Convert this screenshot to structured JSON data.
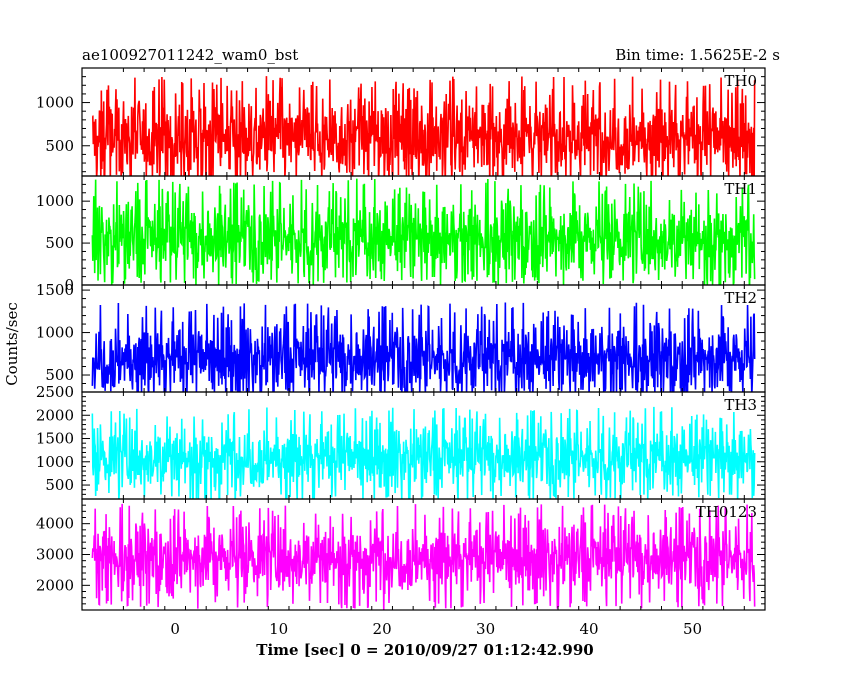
{
  "header": {
    "left_title": "ae100927011242_wam0_bst",
    "right_title": "Bin time: 1.5625E-2 s"
  },
  "axes": {
    "ylabel": "Counts/sec",
    "xlabel": "Time [sec] 0 = 2010/09/27 01:12:42.990"
  },
  "chart_data": {
    "type": "line",
    "title": "ae100927011242_wam0_bst",
    "subtitle": "Bin time: 1.5625E-2 s",
    "xlabel": "Time [sec] 0 = 2010/09/27 01:12:42.990",
    "ylabel": "Counts/sec",
    "xlim": [
      -9,
      57
    ],
    "x_data_range": [
      -8,
      56
    ],
    "xticks": [
      0,
      10,
      20,
      30,
      40,
      50
    ],
    "grid": false,
    "panels": [
      {
        "name": "TH0",
        "color": "#ff0000",
        "ylim": [
          150,
          1400
        ],
        "yticks": [
          500,
          1000
        ],
        "baseline": 600,
        "typical_max": 1200,
        "typical_min": 150
      },
      {
        "name": "TH1",
        "color": "#00ff00",
        "ylim": [
          0,
          1300
        ],
        "yticks": [
          0,
          500,
          1000
        ],
        "baseline": 560,
        "typical_max": 1150,
        "typical_min": 100
      },
      {
        "name": "TH2",
        "color": "#0000ff",
        "ylim": [
          300,
          1560
        ],
        "yticks": [
          500,
          1000,
          1500
        ],
        "baseline": 700,
        "typical_max": 1300,
        "typical_min": 330
      },
      {
        "name": "TH3",
        "color": "#00ffff",
        "ylim": [
          200,
          2500
        ],
        "yticks": [
          500,
          1000,
          1500,
          2000,
          2500
        ],
        "baseline": 1100,
        "typical_max": 1900,
        "typical_min": 300
      },
      {
        "name": "TH0123",
        "color": "#ff00ff",
        "ylim": [
          1200,
          4800
        ],
        "yticks": [
          2000,
          3000,
          4000
        ],
        "baseline": 2900,
        "typical_max": 4100,
        "typical_min": 1500
      }
    ]
  }
}
